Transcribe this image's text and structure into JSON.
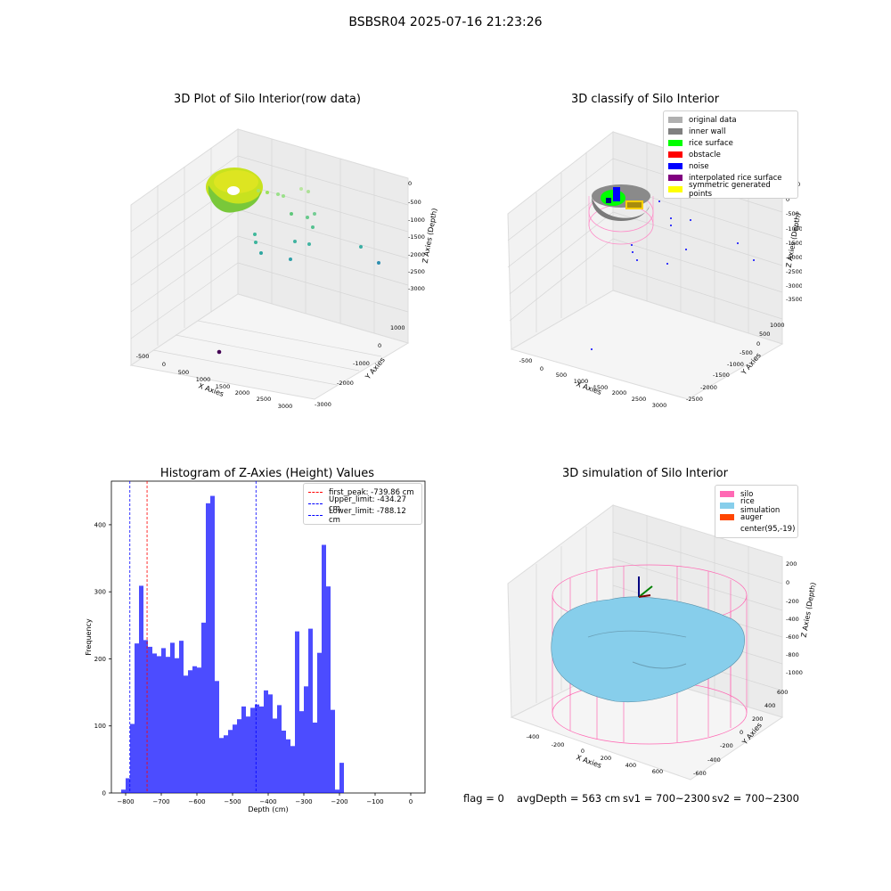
{
  "figure": {
    "suptitle": "BSBSR04 2025-07-16 21:23:26",
    "footer": {
      "flag": "flag = 0",
      "avg_depth": "avgDepth = 563 cm",
      "sv1": "sv1 = 700~2300",
      "sv2": "sv2 = 700~2300"
    }
  },
  "panels": {
    "raw": {
      "title": "3D Plot of Silo Interior(row data)",
      "xlabel": "X Axies",
      "ylabel": "Y Axies",
      "zlabel": "Z Axies (Depth)",
      "x_ticks": [
        "-500",
        "0",
        "500",
        "1000",
        "1500",
        "2000",
        "2500",
        "3000"
      ],
      "y_ticks": [
        "1000",
        "0",
        "-1000",
        "-2000",
        "-3000"
      ],
      "z_ticks": [
        "0",
        "-500",
        "-1000",
        "-1500",
        "-2000",
        "-2500",
        "-3000"
      ]
    },
    "classify": {
      "title": "3D classify of Silo Interior",
      "xlabel": "X Axies",
      "ylabel": "Y Axies",
      "zlabel": "Z Axies (Depth)",
      "x_ticks": [
        "-500",
        "0",
        "500",
        "1000",
        "1500",
        "2000",
        "2500",
        "3000"
      ],
      "y_ticks": [
        "1000",
        "500",
        "0",
        "-500",
        "-1000",
        "-1500",
        "-2000",
        "-2500"
      ],
      "z_ticks": [
        "0",
        "-500",
        "-1000",
        "-1500",
        "-2000",
        "-2500",
        "-3000",
        "-3500"
      ],
      "z_top_tick": "00",
      "legend": [
        {
          "label": "original data",
          "color": "#b0b0b0"
        },
        {
          "label": "inner wall",
          "color": "#808080"
        },
        {
          "label": "rice surface",
          "color": "#00ff00"
        },
        {
          "label": "obstacle",
          "color": "#ff0000"
        },
        {
          "label": "noise",
          "color": "#0000ff"
        },
        {
          "label": "interpolated rice surface",
          "color": "#800080"
        },
        {
          "label": "symmetric generated points",
          "color": "#ffff00"
        }
      ]
    },
    "histogram": {
      "title": "Histogram of Z-Axies (Height) Values",
      "xlabel": "Depth (cm)",
      "ylabel": "Frequency",
      "legend": [
        {
          "label": "first_peak: -739.86 cm",
          "color": "#ff0000"
        },
        {
          "label": "Upper_limit: -434.27 cm",
          "color": "#0000ff"
        },
        {
          "label": "Lower_limit: -788.12 cm",
          "color": "#0000ff"
        }
      ]
    },
    "simulation": {
      "title": "3D simulation of Silo Interior",
      "xlabel": "X Axies",
      "ylabel": "Y Axies",
      "zlabel": "Z Axies (Depth)",
      "x_ticks": [
        "-400",
        "-200",
        "0",
        "200",
        "400",
        "600"
      ],
      "y_ticks": [
        "600",
        "400",
        "200",
        "0",
        "-200",
        "-400",
        "-600"
      ],
      "z_ticks": [
        "200",
        "0",
        "-200",
        "-400",
        "-600",
        "-800",
        "-1000"
      ],
      "legend": [
        {
          "label": "silo",
          "color": "#ff69b4"
        },
        {
          "label": "rice simulation",
          "color": "#87ceeb"
        },
        {
          "label": "auger",
          "color": "#ff4500"
        },
        {
          "label": "center(95,-19)",
          "color": "#ffffff"
        }
      ]
    }
  },
  "chart_data": {
    "type": "bar",
    "title": "Histogram of Z-Axies (Height) Values",
    "xlabel": "Depth (cm)",
    "ylabel": "Frequency",
    "bar_color": "#0000ff",
    "bar_alpha": 0.7,
    "bin_edges_start": -812.5,
    "bin_width": 12.5,
    "values": [
      5,
      22,
      103,
      223,
      309,
      228,
      218,
      208,
      204,
      216,
      203,
      224,
      201,
      227,
      175,
      183,
      189,
      187,
      254,
      432,
      443,
      167,
      82,
      86,
      94,
      102,
      110,
      129,
      114,
      127,
      132,
      129,
      153,
      147,
      111,
      131,
      93,
      80,
      70,
      241,
      122,
      159,
      245,
      105,
      209,
      370,
      308,
      124,
      5,
      45
    ],
    "xlim": [
      -840,
      40
    ],
    "ylim": [
      0,
      465
    ],
    "x_ticks": [
      -800,
      -700,
      -600,
      -500,
      -400,
      -300,
      -200,
      -100,
      0
    ],
    "y_ticks": [
      0,
      100,
      200,
      300,
      400
    ],
    "vlines": [
      {
        "x": -739.86,
        "color": "#ff0000",
        "label": "first_peak: -739.86 cm"
      },
      {
        "x": -434.27,
        "color": "#0000ff",
        "label": "Upper_limit: -434.27 cm"
      },
      {
        "x": -788.12,
        "color": "#0000ff",
        "label": "Lower_limit: -788.12 cm"
      }
    ],
    "legend_position": "upper right"
  }
}
